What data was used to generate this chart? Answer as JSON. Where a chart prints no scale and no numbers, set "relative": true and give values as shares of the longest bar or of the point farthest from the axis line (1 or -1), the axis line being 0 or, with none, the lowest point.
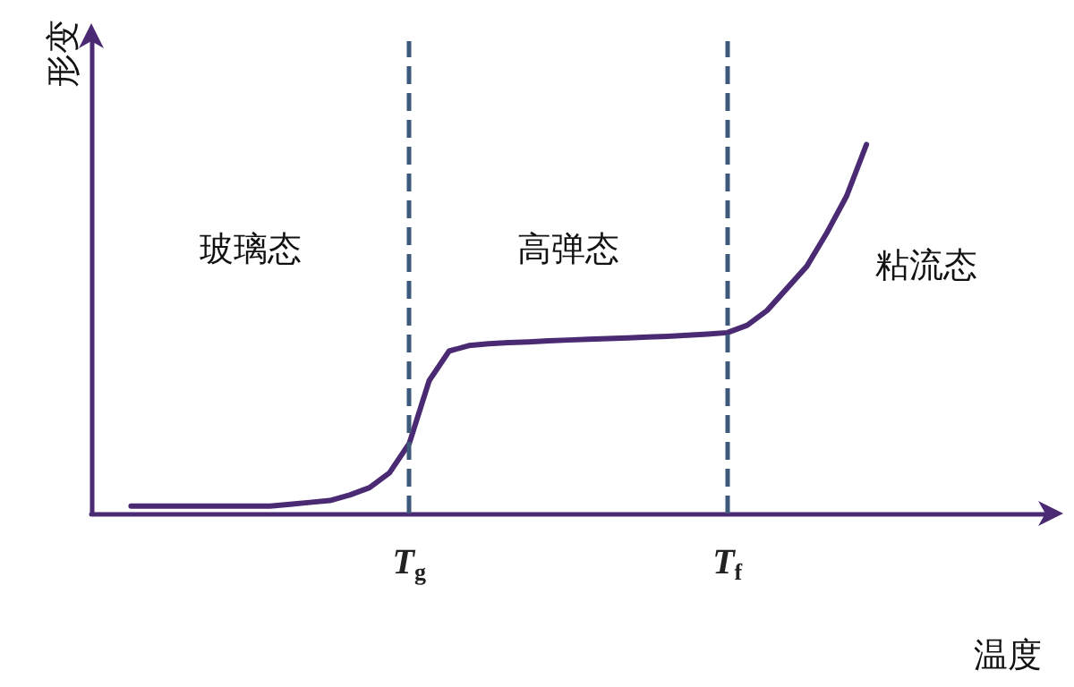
{
  "chart_data": {
    "type": "line",
    "relative": true,
    "xlabel": "温度",
    "ylabel": "形变",
    "categories": [
      null,
      null,
      null,
      null,
      null,
      null,
      null,
      null,
      null,
      null,
      null,
      null,
      null,
      null,
      null,
      null,
      "T$_{g}$",
      null,
      null,
      null,
      null,
      null,
      null,
      null,
      null,
      null,
      null,
      null,
      null,
      null,
      null,
      null,
      "T$_{f}$",
      null,
      null,
      null,
      null,
      null,
      null,
      null,
      null,
      null,
      null,
      null,
      null,
      null,
      null,
      null,
      null
    ],
    "series": [
      {
        "color": "#4a2a72",
        "values": [
          null,
          null,
          0.02,
          0.02,
          0.02,
          0.02,
          0.02,
          0.02,
          0.02,
          0.02,
          0.025,
          0.03,
          0.035,
          0.05,
          0.07,
          0.11,
          0.19,
          0.36,
          0.44,
          0.455,
          0.46,
          0.463,
          0.465,
          0.468,
          0.47,
          0.472,
          0.474,
          0.476,
          0.478,
          0.48,
          0.483,
          0.486,
          0.49,
          0.51,
          0.55,
          0.61,
          0.67,
          0.76,
          0.86,
          1,
          null,
          null,
          null,
          null,
          null,
          null,
          null,
          null,
          null
        ]
      }
    ],
    "ref_lines": [
      {
        "axis": "x",
        "value": "T$_{g}$",
        "color": "#3d5a7a",
        "line_style": "dashed"
      },
      {
        "axis": "x",
        "value": "T$_{f}$",
        "color": "#3d5a7a",
        "line_style": "dashed"
      }
    ],
    "annotations": [
      "玻璃态",
      "高弹态",
      "粘流态"
    ],
    "grid": false,
    "marker": "none",
    "line_style": "solid"
  }
}
